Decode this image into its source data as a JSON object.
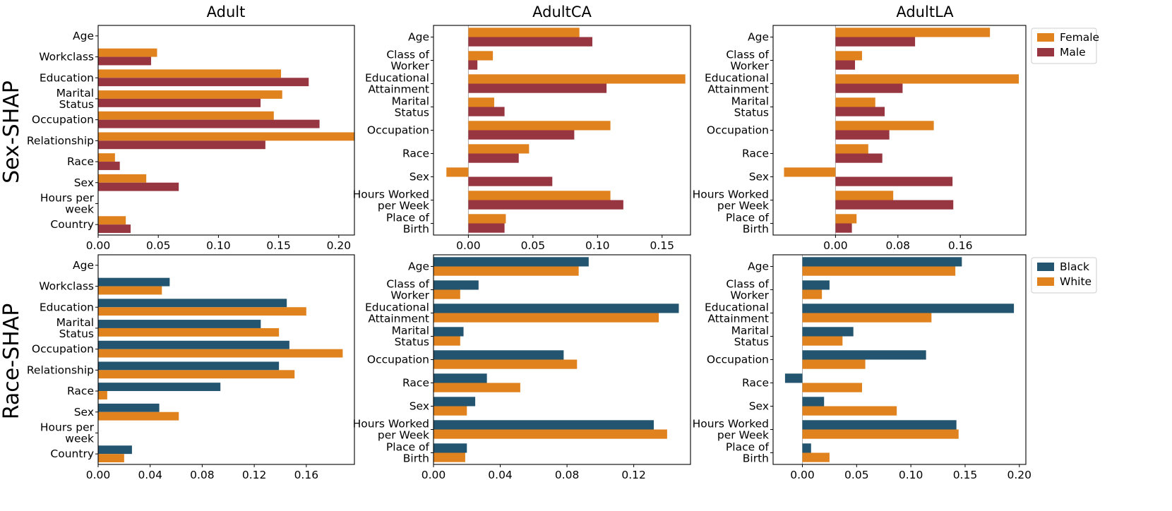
{
  "colors": {
    "female": "#e0831f",
    "male": "#973640",
    "black": "#235570",
    "white": "#e0831f"
  },
  "chart_data": [
    {
      "id": "sex-adult",
      "type": "bar",
      "orientation": "horizontal",
      "title": "Adult",
      "row_label": "Sex-SHAP",
      "categories": [
        "Age",
        "Workclass",
        "Education",
        "Marital\nStatus",
        "Occupation",
        "Relationship",
        "Race",
        "Sex",
        "Hours per\nweek",
        "Country"
      ],
      "series": [
        {
          "name": "Female",
          "color_key": "female",
          "values": [
            0.0,
            0.049,
            0.152,
            0.153,
            0.146,
            0.213,
            0.014,
            0.04,
            0.0,
            0.023
          ]
        },
        {
          "name": "Male",
          "color_key": "male",
          "values": [
            0.0,
            0.044,
            0.175,
            0.135,
            0.184,
            0.139,
            0.018,
            0.067,
            0.0,
            0.027
          ]
        }
      ],
      "xlim": [
        0.0,
        0.213
      ],
      "xticks": [
        0.0,
        0.05,
        0.1,
        0.15,
        0.2
      ],
      "xtick_labels": [
        "0.00",
        "0.05",
        "0.10",
        "0.15",
        "0.20"
      ]
    },
    {
      "id": "sex-adultca",
      "type": "bar",
      "orientation": "horizontal",
      "title": "AdultCA",
      "categories": [
        "Age",
        "Class of\nWorker",
        "Educational\nAttainment",
        "Marital\nStatus",
        "Occupation",
        "Race",
        "Sex",
        "Hours Worked\nper Week",
        "Place of\nBirth"
      ],
      "series": [
        {
          "name": "Female",
          "color_key": "female",
          "values": [
            0.086,
            0.019,
            0.168,
            0.02,
            0.11,
            0.047,
            -0.017,
            0.11,
            0.029
          ]
        },
        {
          "name": "Male",
          "color_key": "male",
          "values": [
            0.096,
            0.007,
            0.107,
            0.028,
            0.082,
            0.039,
            0.065,
            0.12,
            0.028
          ]
        }
      ],
      "xlim": [
        -0.027,
        0.172
      ],
      "xticks": [
        0.0,
        0.05,
        0.1,
        0.15
      ],
      "xtick_labels": [
        "0.00",
        "0.05",
        "0.10",
        "0.15"
      ]
    },
    {
      "id": "sex-adultla",
      "type": "bar",
      "orientation": "horizontal",
      "title": "AdultLA",
      "categories": [
        "Age",
        "Class of\nWorker",
        "Educational\nAttainment",
        "Marital\nStatus",
        "Occupation",
        "Race",
        "Sex",
        "Hours Worked\nper Week",
        "Place of\nBirth"
      ],
      "series": [
        {
          "name": "Female",
          "color_key": "female",
          "values": [
            0.198,
            0.034,
            0.235,
            0.051,
            0.126,
            0.042,
            -0.066,
            0.074,
            0.027
          ]
        },
        {
          "name": "Male",
          "color_key": "male",
          "values": [
            0.102,
            0.025,
            0.086,
            0.063,
            0.069,
            0.06,
            0.15,
            0.151,
            0.021
          ]
        }
      ],
      "xlim": [
        -0.08,
        0.244
      ],
      "xticks": [
        0.0,
        0.08,
        0.16
      ],
      "xtick_labels": [
        "0.00",
        "0.08",
        "0.16"
      ],
      "legend": {
        "position": "outside-right",
        "entries": [
          "Female",
          "Male"
        ]
      }
    },
    {
      "id": "race-adult",
      "type": "bar",
      "orientation": "horizontal",
      "row_label": "Race-SHAP",
      "categories": [
        "Age",
        "Workclass",
        "Education",
        "Marital\nStatus",
        "Occupation",
        "Relationship",
        "Race",
        "Sex",
        "Hours per\nweek",
        "Country"
      ],
      "series": [
        {
          "name": "Black",
          "color_key": "black",
          "values": [
            0.0,
            0.055,
            0.145,
            0.125,
            0.147,
            0.139,
            0.094,
            0.047,
            0.0,
            0.026
          ]
        },
        {
          "name": "White",
          "color_key": "white",
          "values": [
            0.0,
            0.049,
            0.16,
            0.139,
            0.188,
            0.151,
            0.007,
            0.062,
            0.0,
            0.02
          ]
        }
      ],
      "xlim": [
        0.0,
        0.197
      ],
      "xticks": [
        0.0,
        0.04,
        0.08,
        0.12,
        0.16
      ],
      "xtick_labels": [
        "0.00",
        "0.04",
        "0.08",
        "0.12",
        "0.16"
      ]
    },
    {
      "id": "race-adultca",
      "type": "bar",
      "orientation": "horizontal",
      "categories": [
        "Age",
        "Class of\nWorker",
        "Educational\nAttainment",
        "Marital\nStatus",
        "Occupation",
        "Race",
        "Sex",
        "Hours Worked\nper Week",
        "Place of\nBirth"
      ],
      "series": [
        {
          "name": "Black",
          "color_key": "black",
          "values": [
            0.093,
            0.027,
            0.147,
            0.018,
            0.078,
            0.032,
            0.025,
            0.132,
            0.02
          ]
        },
        {
          "name": "White",
          "color_key": "white",
          "values": [
            0.087,
            0.016,
            0.135,
            0.016,
            0.086,
            0.052,
            0.02,
            0.14,
            0.019
          ]
        }
      ],
      "xlim": [
        0.0,
        0.154
      ],
      "xticks": [
        0.0,
        0.04,
        0.08,
        0.12
      ],
      "xtick_labels": [
        "0.00",
        "0.04",
        "0.08",
        "0.12"
      ]
    },
    {
      "id": "race-adultla",
      "type": "bar",
      "orientation": "horizontal",
      "categories": [
        "Age",
        "Class of\nWorker",
        "Educational\nAttainment",
        "Marital\nStatus",
        "Occupation",
        "Race",
        "Sex",
        "Hours Worked\nper Week",
        "Place of\nBirth"
      ],
      "series": [
        {
          "name": "Black",
          "color_key": "black",
          "values": [
            0.147,
            0.025,
            0.195,
            0.047,
            0.114,
            -0.016,
            0.02,
            0.142,
            0.008
          ]
        },
        {
          "name": "White",
          "color_key": "white",
          "values": [
            0.141,
            0.018,
            0.119,
            0.037,
            0.058,
            0.055,
            0.087,
            0.144,
            0.025
          ]
        }
      ],
      "xlim": [
        -0.027,
        0.206
      ],
      "xticks": [
        0.0,
        0.05,
        0.1,
        0.15,
        0.2
      ],
      "xtick_labels": [
        "0.00",
        "0.05",
        "0.10",
        "0.15",
        "0.20"
      ],
      "legend": {
        "position": "outside-right",
        "entries": [
          "Black",
          "White"
        ]
      }
    }
  ]
}
